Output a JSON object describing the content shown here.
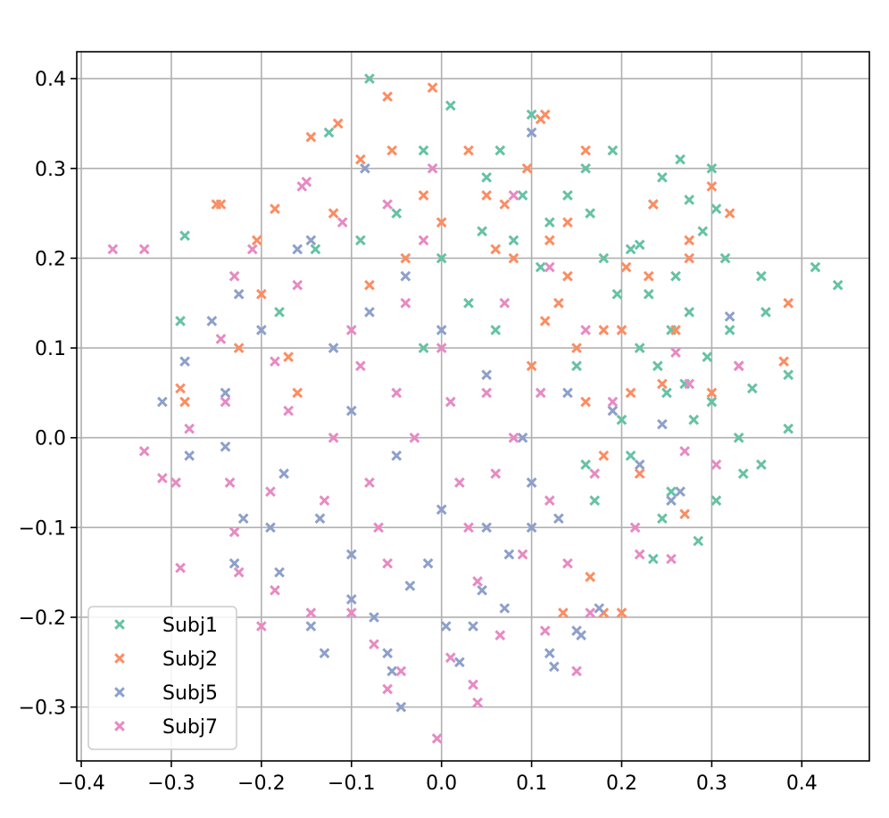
{
  "chart_data": {
    "type": "scatter",
    "title": "",
    "xlabel": "",
    "ylabel": "",
    "xlim": [
      -0.405,
      0.475
    ],
    "ylim": [
      -0.36,
      0.43
    ],
    "grid": true,
    "legend_position": "lower-left",
    "marker": "x",
    "x_ticks": [
      -0.4,
      -0.3,
      -0.2,
      -0.1,
      0.0,
      0.1,
      0.2,
      0.3,
      0.4
    ],
    "x_tick_labels": [
      "−0.4",
      "−0.3",
      "−0.2",
      "−0.1",
      "0.0",
      "0.1",
      "0.2",
      "0.3",
      "0.4"
    ],
    "y_ticks": [
      -0.3,
      -0.2,
      -0.1,
      0.0,
      0.1,
      0.2,
      0.3,
      0.4
    ],
    "y_tick_labels": [
      "−0.3",
      "−0.2",
      "−0.1",
      "0.0",
      "0.1",
      "0.2",
      "0.3",
      "0.4"
    ],
    "series": [
      {
        "name": "Subj1",
        "color": "#66c2a5",
        "points": [
          [
            -0.08,
            0.4
          ],
          [
            0.01,
            0.37
          ],
          [
            0.1,
            0.36
          ],
          [
            -0.125,
            0.34
          ],
          [
            0.19,
            0.32
          ],
          [
            0.265,
            0.31
          ],
          [
            0.3,
            0.3
          ],
          [
            0.245,
            0.29
          ],
          [
            -0.02,
            0.32
          ],
          [
            0.16,
            0.3
          ],
          [
            0.235,
            0.26
          ],
          [
            0.275,
            0.265
          ],
          [
            0.305,
            0.255
          ],
          [
            0.315,
            0.2
          ],
          [
            0.355,
            0.18
          ],
          [
            0.415,
            0.19
          ],
          [
            0.44,
            0.17
          ],
          [
            0.36,
            0.14
          ],
          [
            0.385,
            0.07
          ],
          [
            0.385,
            0.01
          ],
          [
            0.335,
            -0.04
          ],
          [
            0.305,
            -0.07
          ],
          [
            0.285,
            -0.115
          ],
          [
            0.355,
            -0.03
          ],
          [
            0.295,
            0.09
          ],
          [
            0.3,
            0.04
          ],
          [
            0.245,
            -0.09
          ],
          [
            0.235,
            -0.135
          ],
          [
            0.255,
            -0.06
          ],
          [
            0.22,
            0.215
          ],
          [
            0.26,
            0.18
          ],
          [
            0.195,
            0.16
          ],
          [
            -0.285,
            0.225
          ],
          [
            -0.29,
            0.13
          ],
          [
            -0.18,
            0.14
          ],
          [
            -0.14,
            0.21
          ],
          [
            -0.05,
            0.25
          ],
          [
            0.05,
            0.29
          ],
          [
            0.12,
            0.24
          ],
          [
            0.22,
            0.1
          ],
          [
            0.25,
            0.05
          ],
          [
            0.275,
            0.14
          ],
          [
            0.18,
            0.2
          ],
          [
            0.08,
            0.22
          ],
          [
            0.03,
            0.15
          ],
          [
            -0.02,
            0.1
          ],
          [
            0.15,
            0.08
          ],
          [
            0.2,
            0.02
          ],
          [
            0.24,
            0.08
          ],
          [
            0.27,
            0.06
          ],
          [
            0.21,
            -0.02
          ],
          [
            0.33,
            0.0
          ],
          [
            0.345,
            0.055
          ],
          [
            0.29,
            0.23
          ],
          [
            0.32,
            0.12
          ],
          [
            0.065,
            0.32
          ],
          [
            0.09,
            0.27
          ],
          [
            0.14,
            0.27
          ],
          [
            0.165,
            0.25
          ],
          [
            0.11,
            0.19
          ],
          [
            -0.09,
            0.22
          ],
          [
            0.0,
            0.2
          ],
          [
            0.06,
            0.12
          ],
          [
            0.23,
            0.16
          ],
          [
            0.255,
            0.12
          ],
          [
            0.28,
            0.02
          ],
          [
            0.17,
            -0.07
          ],
          [
            0.16,
            -0.03
          ],
          [
            0.045,
            0.23
          ],
          [
            0.21,
            0.21
          ]
        ]
      },
      {
        "name": "Subj2",
        "color": "#fc8d62",
        "points": [
          [
            -0.06,
            0.38
          ],
          [
            -0.01,
            0.39
          ],
          [
            0.115,
            0.36
          ],
          [
            0.11,
            0.355
          ],
          [
            -0.115,
            0.35
          ],
          [
            -0.145,
            0.335
          ],
          [
            0.03,
            0.32
          ],
          [
            -0.055,
            0.32
          ],
          [
            0.16,
            0.32
          ],
          [
            -0.25,
            0.26
          ],
          [
            -0.245,
            0.26
          ],
          [
            -0.185,
            0.255
          ],
          [
            0.3,
            0.28
          ],
          [
            0.32,
            0.25
          ],
          [
            0.275,
            0.22
          ],
          [
            0.275,
            0.2
          ],
          [
            0.385,
            0.15
          ],
          [
            0.38,
            0.085
          ],
          [
            -0.29,
            0.055
          ],
          [
            -0.285,
            0.04
          ],
          [
            -0.225,
            0.1
          ],
          [
            0.27,
            -0.085
          ],
          [
            0.18,
            -0.195
          ],
          [
            0.2,
            -0.195
          ],
          [
            0.165,
            -0.155
          ],
          [
            0.135,
            -0.195
          ],
          [
            0.245,
            0.06
          ],
          [
            0.23,
            0.18
          ],
          [
            0.08,
            0.2
          ],
          [
            0.12,
            0.22
          ],
          [
            -0.12,
            0.25
          ],
          [
            -0.09,
            0.31
          ],
          [
            0.05,
            0.27
          ],
          [
            -0.2,
            0.16
          ],
          [
            -0.205,
            0.22
          ],
          [
            0.18,
            0.12
          ],
          [
            0.15,
            0.1
          ],
          [
            0.2,
            0.12
          ],
          [
            0.21,
            0.05
          ],
          [
            0.18,
            -0.02
          ],
          [
            0.3,
            0.05
          ],
          [
            -0.17,
            0.09
          ],
          [
            -0.16,
            0.05
          ],
          [
            0.14,
            0.18
          ],
          [
            0.13,
            0.15
          ],
          [
            0.1,
            0.08
          ],
          [
            0.07,
            0.26
          ],
          [
            0.0,
            0.24
          ],
          [
            -0.04,
            0.2
          ],
          [
            0.26,
            0.12
          ],
          [
            0.235,
            0.26
          ],
          [
            0.095,
            0.3
          ],
          [
            0.06,
            0.21
          ],
          [
            0.16,
            0.04
          ],
          [
            0.22,
            -0.04
          ],
          [
            0.205,
            0.19
          ],
          [
            0.14,
            0.24
          ],
          [
            -0.02,
            0.27
          ],
          [
            -0.08,
            0.17
          ],
          [
            0.115,
            0.13
          ]
        ]
      },
      {
        "name": "Subj5",
        "color": "#8da0cb",
        "points": [
          [
            0.1,
            0.34
          ],
          [
            -0.085,
            0.3
          ],
          [
            -0.145,
            0.22
          ],
          [
            -0.16,
            0.21
          ],
          [
            -0.2,
            0.12
          ],
          [
            -0.255,
            0.13
          ],
          [
            -0.225,
            0.16
          ],
          [
            -0.285,
            0.085
          ],
          [
            -0.31,
            0.04
          ],
          [
            -0.28,
            -0.02
          ],
          [
            -0.24,
            -0.01
          ],
          [
            -0.175,
            -0.04
          ],
          [
            -0.22,
            -0.09
          ],
          [
            -0.23,
            -0.14
          ],
          [
            -0.18,
            -0.15
          ],
          [
            -0.145,
            -0.21
          ],
          [
            -0.13,
            -0.24
          ],
          [
            -0.1,
            -0.18
          ],
          [
            -0.075,
            -0.2
          ],
          [
            -0.06,
            -0.24
          ],
          [
            -0.055,
            -0.26
          ],
          [
            -0.045,
            -0.3
          ],
          [
            0.005,
            -0.21
          ],
          [
            0.035,
            -0.21
          ],
          [
            0.07,
            -0.19
          ],
          [
            0.12,
            -0.24
          ],
          [
            0.125,
            -0.255
          ],
          [
            0.15,
            -0.215
          ],
          [
            0.155,
            -0.22
          ],
          [
            0.175,
            -0.19
          ],
          [
            0.265,
            -0.06
          ],
          [
            0.32,
            0.135
          ],
          [
            0.33,
            0.08
          ],
          [
            0.245,
            0.015
          ],
          [
            0.14,
            0.05
          ],
          [
            0.1,
            -0.05
          ],
          [
            0.05,
            -0.1
          ],
          [
            0.0,
            -0.08
          ],
          [
            -0.05,
            -0.02
          ],
          [
            -0.1,
            0.03
          ],
          [
            -0.12,
            0.1
          ],
          [
            -0.08,
            0.14
          ],
          [
            0.0,
            0.12
          ],
          [
            0.05,
            0.07
          ],
          [
            0.09,
            0.0
          ],
          [
            -0.015,
            -0.14
          ],
          [
            -0.035,
            -0.165
          ],
          [
            -0.135,
            -0.09
          ],
          [
            0.075,
            -0.13
          ],
          [
            0.1,
            -0.1
          ],
          [
            -0.24,
            0.05
          ],
          [
            -0.19,
            -0.1
          ],
          [
            0.02,
            -0.25
          ],
          [
            0.045,
            -0.17
          ],
          [
            0.255,
            -0.07
          ],
          [
            0.22,
            -0.03
          ],
          [
            -0.04,
            0.18
          ],
          [
            -0.1,
            -0.13
          ],
          [
            0.13,
            -0.09
          ],
          [
            0.19,
            0.03
          ]
        ]
      },
      {
        "name": "Subj7",
        "color": "#e78ac3",
        "points": [
          [
            -0.365,
            0.21
          ],
          [
            -0.33,
            0.21
          ],
          [
            -0.15,
            0.285
          ],
          [
            -0.155,
            0.28
          ],
          [
            -0.21,
            0.21
          ],
          [
            -0.23,
            0.18
          ],
          [
            -0.245,
            0.11
          ],
          [
            -0.185,
            0.085
          ],
          [
            -0.24,
            0.04
          ],
          [
            -0.28,
            0.01
          ],
          [
            -0.33,
            -0.015
          ],
          [
            -0.31,
            -0.045
          ],
          [
            -0.295,
            -0.05
          ],
          [
            -0.235,
            -0.05
          ],
          [
            -0.225,
            -0.15
          ],
          [
            -0.29,
            -0.145
          ],
          [
            -0.23,
            -0.105
          ],
          [
            -0.2,
            -0.21
          ],
          [
            -0.185,
            -0.17
          ],
          [
            -0.145,
            -0.195
          ],
          [
            -0.1,
            -0.195
          ],
          [
            -0.075,
            -0.23
          ],
          [
            -0.06,
            -0.28
          ],
          [
            -0.045,
            -0.26
          ],
          [
            -0.005,
            -0.335
          ],
          [
            0.04,
            -0.295
          ],
          [
            0.035,
            -0.275
          ],
          [
            0.01,
            -0.245
          ],
          [
            0.065,
            -0.22
          ],
          [
            0.115,
            -0.215
          ],
          [
            0.15,
            -0.26
          ],
          [
            0.165,
            -0.195
          ],
          [
            0.22,
            -0.13
          ],
          [
            0.215,
            -0.1
          ],
          [
            0.255,
            -0.135
          ],
          [
            0.27,
            -0.015
          ],
          [
            0.305,
            -0.03
          ],
          [
            0.33,
            0.08
          ],
          [
            0.275,
            0.06
          ],
          [
            0.26,
            0.095
          ],
          [
            0.08,
            0.27
          ],
          [
            -0.01,
            0.3
          ],
          [
            -0.06,
            0.26
          ],
          [
            -0.11,
            0.24
          ],
          [
            -0.16,
            0.17
          ],
          [
            0.0,
            0.1
          ],
          [
            0.05,
            0.05
          ],
          [
            -0.03,
            0.0
          ],
          [
            0.02,
            -0.05
          ],
          [
            -0.08,
            -0.05
          ],
          [
            -0.05,
            0.05
          ],
          [
            0.03,
            -0.1
          ],
          [
            0.08,
            0.0
          ],
          [
            0.11,
            0.05
          ],
          [
            0.07,
            0.15
          ],
          [
            -0.04,
            0.15
          ],
          [
            -0.12,
            0.0
          ],
          [
            -0.13,
            -0.07
          ],
          [
            -0.06,
            -0.14
          ],
          [
            0.04,
            -0.16
          ],
          [
            0.12,
            -0.07
          ],
          [
            0.17,
            -0.04
          ],
          [
            0.19,
            0.04
          ],
          [
            0.16,
            0.12
          ],
          [
            0.12,
            0.19
          ],
          [
            -0.1,
            0.12
          ],
          [
            -0.17,
            0.03
          ],
          [
            -0.19,
            -0.06
          ],
          [
            -0.02,
            0.22
          ],
          [
            0.09,
            -0.13
          ],
          [
            0.14,
            -0.14
          ],
          [
            -0.07,
            -0.1
          ],
          [
            0.01,
            0.04
          ],
          [
            -0.09,
            0.08
          ],
          [
            0.06,
            -0.04
          ]
        ]
      }
    ]
  }
}
